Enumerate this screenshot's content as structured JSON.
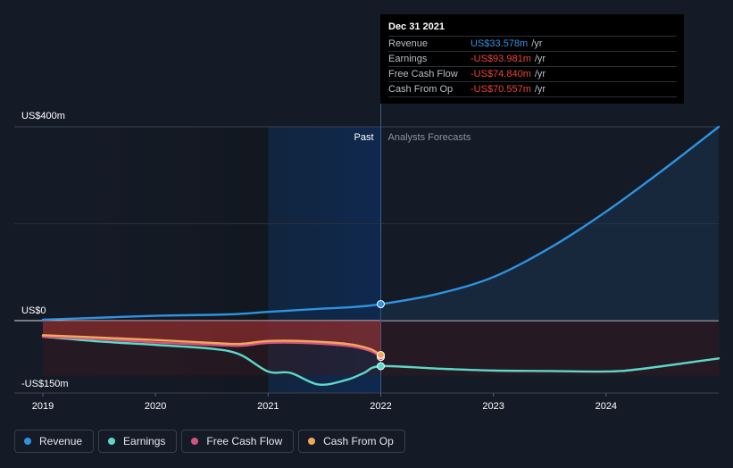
{
  "chart_data": {
    "type": "line",
    "x_ticks": [
      "2019",
      "2020",
      "2021",
      "2022",
      "2023",
      "2024"
    ],
    "y_labels": {
      "top": "US$400m",
      "zero": "US$0",
      "bottom": "-US$150m"
    },
    "ylim": [
      -150,
      400
    ],
    "xlim": [
      2019,
      2025
    ],
    "past_label": "Past",
    "forecast_label": "Analysts Forecasts",
    "forecast_start": 2022,
    "series": [
      {
        "name": "Revenue",
        "color": "#2e93e2",
        "points": [
          [
            2019,
            2
          ],
          [
            2019.5,
            6
          ],
          [
            2020,
            10
          ],
          [
            2020.5,
            12
          ],
          [
            2020.75,
            14
          ],
          [
            2021,
            18
          ],
          [
            2021.5,
            25
          ],
          [
            2021.75,
            28
          ],
          [
            2022,
            34
          ],
          [
            2022.5,
            55
          ],
          [
            2023,
            90
          ],
          [
            2023.5,
            150
          ],
          [
            2024,
            225
          ],
          [
            2024.5,
            310
          ],
          [
            2025,
            400
          ]
        ]
      },
      {
        "name": "Earnings",
        "color": "#5dd8c8",
        "points": [
          [
            2019,
            -33
          ],
          [
            2019.5,
            -43
          ],
          [
            2020,
            -50
          ],
          [
            2020.5,
            -58
          ],
          [
            2020.75,
            -70
          ],
          [
            2021,
            -105
          ],
          [
            2021.2,
            -108
          ],
          [
            2021.45,
            -132
          ],
          [
            2021.7,
            -122
          ],
          [
            2021.85,
            -108
          ],
          [
            2022,
            -94
          ],
          [
            2022.5,
            -99
          ],
          [
            2023,
            -103
          ],
          [
            2023.5,
            -104
          ],
          [
            2024,
            -105
          ],
          [
            2024.3,
            -100
          ],
          [
            2025,
            -78
          ]
        ]
      },
      {
        "name": "Free Cash Flow",
        "color": "#d6527e",
        "points": [
          [
            2019,
            -33
          ],
          [
            2019.5,
            -38
          ],
          [
            2020,
            -45
          ],
          [
            2020.5,
            -50
          ],
          [
            2020.75,
            -52
          ],
          [
            2021,
            -46
          ],
          [
            2021.3,
            -46
          ],
          [
            2021.7,
            -52
          ],
          [
            2021.9,
            -62
          ],
          [
            2022,
            -75
          ]
        ]
      },
      {
        "name": "Cash From Op",
        "color": "#f0a95c",
        "points": [
          [
            2019,
            -30
          ],
          [
            2019.5,
            -35
          ],
          [
            2020,
            -40
          ],
          [
            2020.5,
            -46
          ],
          [
            2020.75,
            -48
          ],
          [
            2021,
            -42
          ],
          [
            2021.3,
            -42
          ],
          [
            2021.7,
            -48
          ],
          [
            2021.9,
            -58
          ],
          [
            2022,
            -71
          ]
        ]
      }
    ]
  },
  "tooltip": {
    "date": "Dec 31 2021",
    "rows": [
      {
        "label": "Revenue",
        "value": "US$33.578m",
        "unit": "/yr",
        "color": "#2e93e2"
      },
      {
        "label": "Earnings",
        "value": "-US$93.981m",
        "unit": "/yr",
        "color": "#e8453c"
      },
      {
        "label": "Free Cash Flow",
        "value": "-US$74.840m",
        "unit": "/yr",
        "color": "#e8453c"
      },
      {
        "label": "Cash From Op",
        "value": "-US$70.557m",
        "unit": "/yr",
        "color": "#e8453c"
      }
    ]
  },
  "legend": [
    {
      "label": "Revenue",
      "color": "#2e93e2"
    },
    {
      "label": "Earnings",
      "color": "#5dd8c8"
    },
    {
      "label": "Free Cash Flow",
      "color": "#d6527e"
    },
    {
      "label": "Cash From Op",
      "color": "#f0a95c"
    }
  ]
}
